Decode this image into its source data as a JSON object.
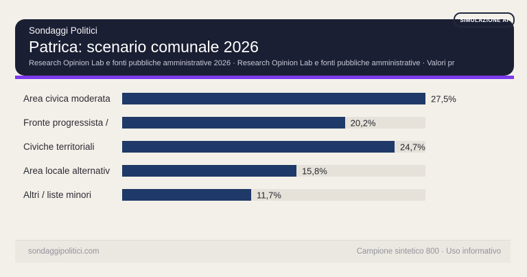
{
  "badge": {
    "label": "SIMULAZIONE AI"
  },
  "header": {
    "kicker": "Sondaggi Politici",
    "title": "Patrica: scenario comunale 2026",
    "subtitle": "Research Opinion Lab e fonti pubbliche amministrative 2026 · Research Opinion Lab e fonti pubbliche amministrative · Valori pr"
  },
  "chart_data": {
    "type": "bar",
    "orientation": "horizontal",
    "categories": [
      "Area civica moderata",
      "Fronte progressista /",
      "Civiche territoriali",
      "Area locale alternativ",
      "Altri / liste minori"
    ],
    "values": [
      27.5,
      20.2,
      24.7,
      15.8,
      11.7
    ],
    "value_labels": [
      "27,5%",
      "20,2%",
      "24,7%",
      "15,8%",
      "11,7%"
    ],
    "xlim": [
      0,
      27.5
    ],
    "grid": false,
    "legend": false,
    "bar_color": "#1f3a68",
    "track_color": "#e6e2da"
  },
  "footer": {
    "left": "sondaggipolitici.com",
    "right": "Campione sintetico 800 · Uso informativo"
  },
  "colors": {
    "page_bg": "#f3f0e9",
    "card_bg": "#1b1f33",
    "accent": "#7c3aed",
    "bar": "#1f3a68",
    "track": "#e6e2da",
    "footer_bg": "#ebe8e2"
  }
}
